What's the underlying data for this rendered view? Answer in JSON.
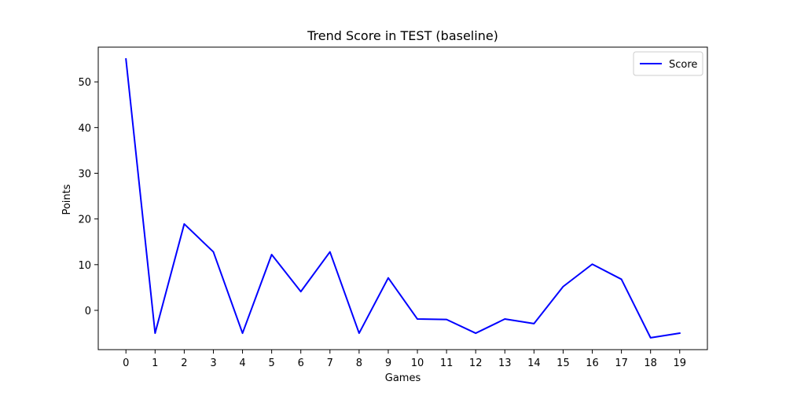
{
  "chart_data": {
    "type": "line",
    "title": "Trend Score in TEST (baseline)",
    "xlabel": "Games",
    "ylabel": "Points",
    "x": [
      0,
      1,
      2,
      3,
      4,
      5,
      6,
      7,
      8,
      9,
      10,
      11,
      12,
      13,
      14,
      15,
      16,
      17,
      18,
      19
    ],
    "x_ticks": [
      "0",
      "1",
      "2",
      "3",
      "4",
      "5",
      "6",
      "7",
      "8",
      "9",
      "10",
      "11",
      "12",
      "13",
      "14",
      "15",
      "16",
      "17",
      "18",
      "19"
    ],
    "y_ticks": [
      "0",
      "10",
      "20",
      "30",
      "40",
      "50"
    ],
    "xlim": [
      -0.95,
      19.95
    ],
    "ylim": [
      -8.6,
      57.6
    ],
    "grid": false,
    "legend_position": "top-right",
    "series": [
      {
        "name": "Score",
        "color": "#0000ff",
        "values": [
          55,
          -5,
          18.9,
          12.8,
          -5,
          12.2,
          4.1,
          12.8,
          -5,
          7.1,
          -1.9,
          -2,
          -5,
          -1.9,
          -2.9,
          5.2,
          10.1,
          6.8,
          -6,
          -5
        ]
      }
    ]
  },
  "colors": {
    "axes": "#000000",
    "background": "#ffffff"
  }
}
